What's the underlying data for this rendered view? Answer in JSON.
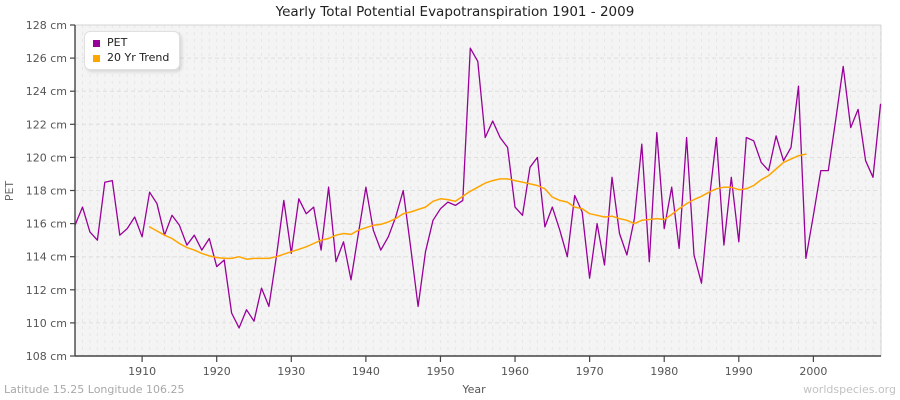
{
  "page": {
    "title": "Yearly Total Potential Evapotranspiration 1901 - 2009",
    "footer_left": "Latitude 15.25 Longitude 106.25",
    "footer_right": "worldspecies.org"
  },
  "legend": {
    "items": [
      {
        "label": "PET",
        "color": "#990099"
      },
      {
        "label": "20 Yr Trend",
        "color": "#FFA500"
      }
    ]
  },
  "chart_data": {
    "type": "line",
    "title": "Yearly Total Potential Evapotranspiration 1901 - 2009",
    "xlabel": "Year",
    "ylabel": "PET",
    "unit": "cm",
    "xlim": [
      1901,
      2009
    ],
    "ylim": [
      108,
      128
    ],
    "grid": true,
    "legend_position": "top-left",
    "y_tick_labels": [
      "128 cm",
      "126 cm",
      "124 cm",
      "122 cm",
      "120 cm",
      "118 cm",
      "116 cm",
      "114 cm",
      "112 cm",
      "110 cm",
      "108 cm"
    ],
    "y_tick_values": [
      128,
      126,
      124,
      122,
      120,
      118,
      116,
      114,
      112,
      110,
      108
    ],
    "x_tick_values": [
      1910,
      1920,
      1930,
      1940,
      1950,
      1960,
      1970,
      1980,
      1990,
      2000
    ],
    "series": [
      {
        "name": "PET",
        "color": "#990099",
        "start_year": 1901,
        "values": [
          115.9,
          117.0,
          115.5,
          115.0,
          118.5,
          118.6,
          115.3,
          115.7,
          116.4,
          115.2,
          117.9,
          117.2,
          115.3,
          116.5,
          115.9,
          114.7,
          115.3,
          114.4,
          115.1,
          113.4,
          113.8,
          110.6,
          109.7,
          110.8,
          110.1,
          112.1,
          111.0,
          114.0,
          117.4,
          114.2,
          117.5,
          116.6,
          117.0,
          114.4,
          118.2,
          113.7,
          114.9,
          112.6,
          115.4,
          118.2,
          115.6,
          114.4,
          115.2,
          116.4,
          118.0,
          114.6,
          111.0,
          114.3,
          116.2,
          116.9,
          117.3,
          117.1,
          117.4,
          126.6,
          125.8,
          121.2,
          122.2,
          121.2,
          120.6,
          117.0,
          116.5,
          119.4,
          120.0,
          115.8,
          117.0,
          115.6,
          114.0,
          117.7,
          116.7,
          112.7,
          116.0,
          113.5,
          118.8,
          115.4,
          114.1,
          116.3,
          120.8,
          113.7,
          121.5,
          115.7,
          118.2,
          114.5,
          121.2,
          114.1,
          112.4,
          117.3,
          121.2,
          114.7,
          118.8,
          114.9,
          121.2,
          121.0,
          119.7,
          119.2,
          121.3,
          119.8,
          120.6,
          124.3,
          113.9,
          116.5,
          119.2,
          119.2,
          122.3,
          125.5,
          121.8,
          122.9,
          119.8,
          118.8,
          123.2
        ]
      },
      {
        "name": "20 Yr Trend",
        "color": "#FFA500",
        "start_year": 1911,
        "values": [
          115.8,
          115.55,
          115.3,
          115.1,
          114.8,
          114.55,
          114.4,
          114.2,
          114.05,
          113.95,
          113.9,
          113.9,
          114.0,
          113.85,
          113.9,
          113.9,
          113.9,
          114.0,
          114.15,
          114.3,
          114.45,
          114.6,
          114.8,
          115.0,
          115.1,
          115.3,
          115.4,
          115.35,
          115.6,
          115.75,
          115.9,
          115.95,
          116.1,
          116.3,
          116.6,
          116.7,
          116.85,
          117.0,
          117.35,
          117.5,
          117.45,
          117.35,
          117.65,
          117.95,
          118.2,
          118.45,
          118.6,
          118.7,
          118.7,
          118.6,
          118.5,
          118.4,
          118.3,
          118.1,
          117.6,
          117.4,
          117.3,
          117.0,
          116.9,
          116.6,
          116.5,
          116.4,
          116.45,
          116.3,
          116.2,
          116.0,
          116.2,
          116.25,
          116.3,
          116.25,
          116.55,
          116.9,
          117.2,
          117.45,
          117.65,
          117.9,
          118.1,
          118.2,
          118.2,
          118.05,
          118.1,
          118.3,
          118.65,
          118.9,
          119.3,
          119.7,
          119.9,
          120.1,
          120.2
        ]
      }
    ]
  },
  "style": {
    "plot_bg": "#f4f4f4",
    "grid_color": "#dedede",
    "minor_grid_color": "#e6e6e6",
    "axis_color": "#444444",
    "border_color": "#d4d4d4"
  }
}
